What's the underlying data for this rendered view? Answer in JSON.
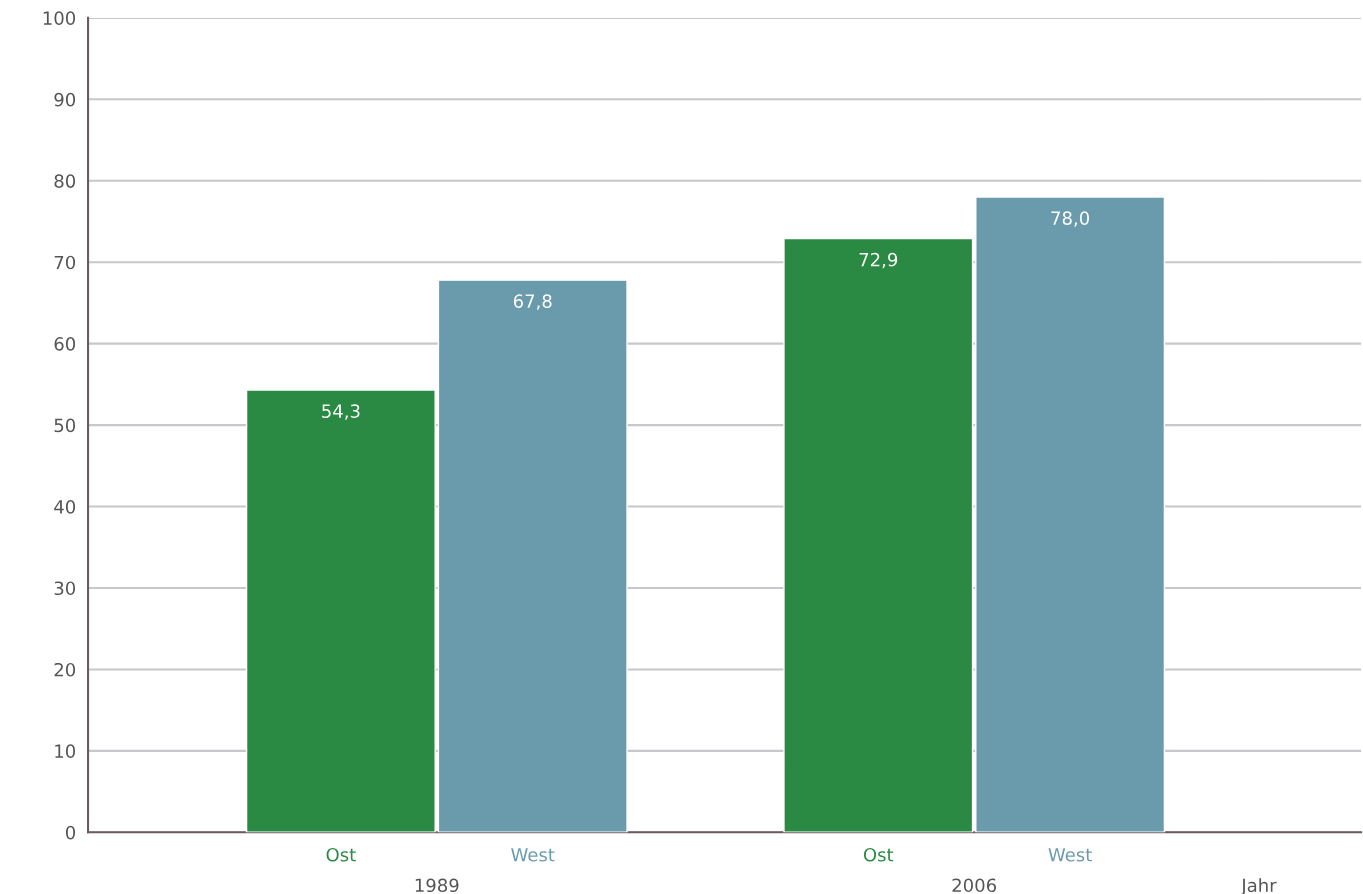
{
  "chart_data": {
    "type": "bar",
    "categories": [
      "1989",
      "2006"
    ],
    "xlabel": "Jahr",
    "series": [
      {
        "name": "Ost",
        "color": "#2a8a43",
        "values": [
          54.3,
          72.9
        ],
        "value_labels": [
          "54,3",
          "72,9"
        ]
      },
      {
        "name": "West",
        "color": "#6a9bad",
        "values": [
          67.8,
          78.0
        ],
        "value_labels": [
          "67,8",
          "78,0"
        ]
      }
    ],
    "ylim": [
      0,
      100
    ],
    "yticks": [
      0,
      10,
      20,
      30,
      40,
      50,
      60,
      70,
      80,
      90,
      100
    ],
    "grid": "y",
    "legend": false
  }
}
